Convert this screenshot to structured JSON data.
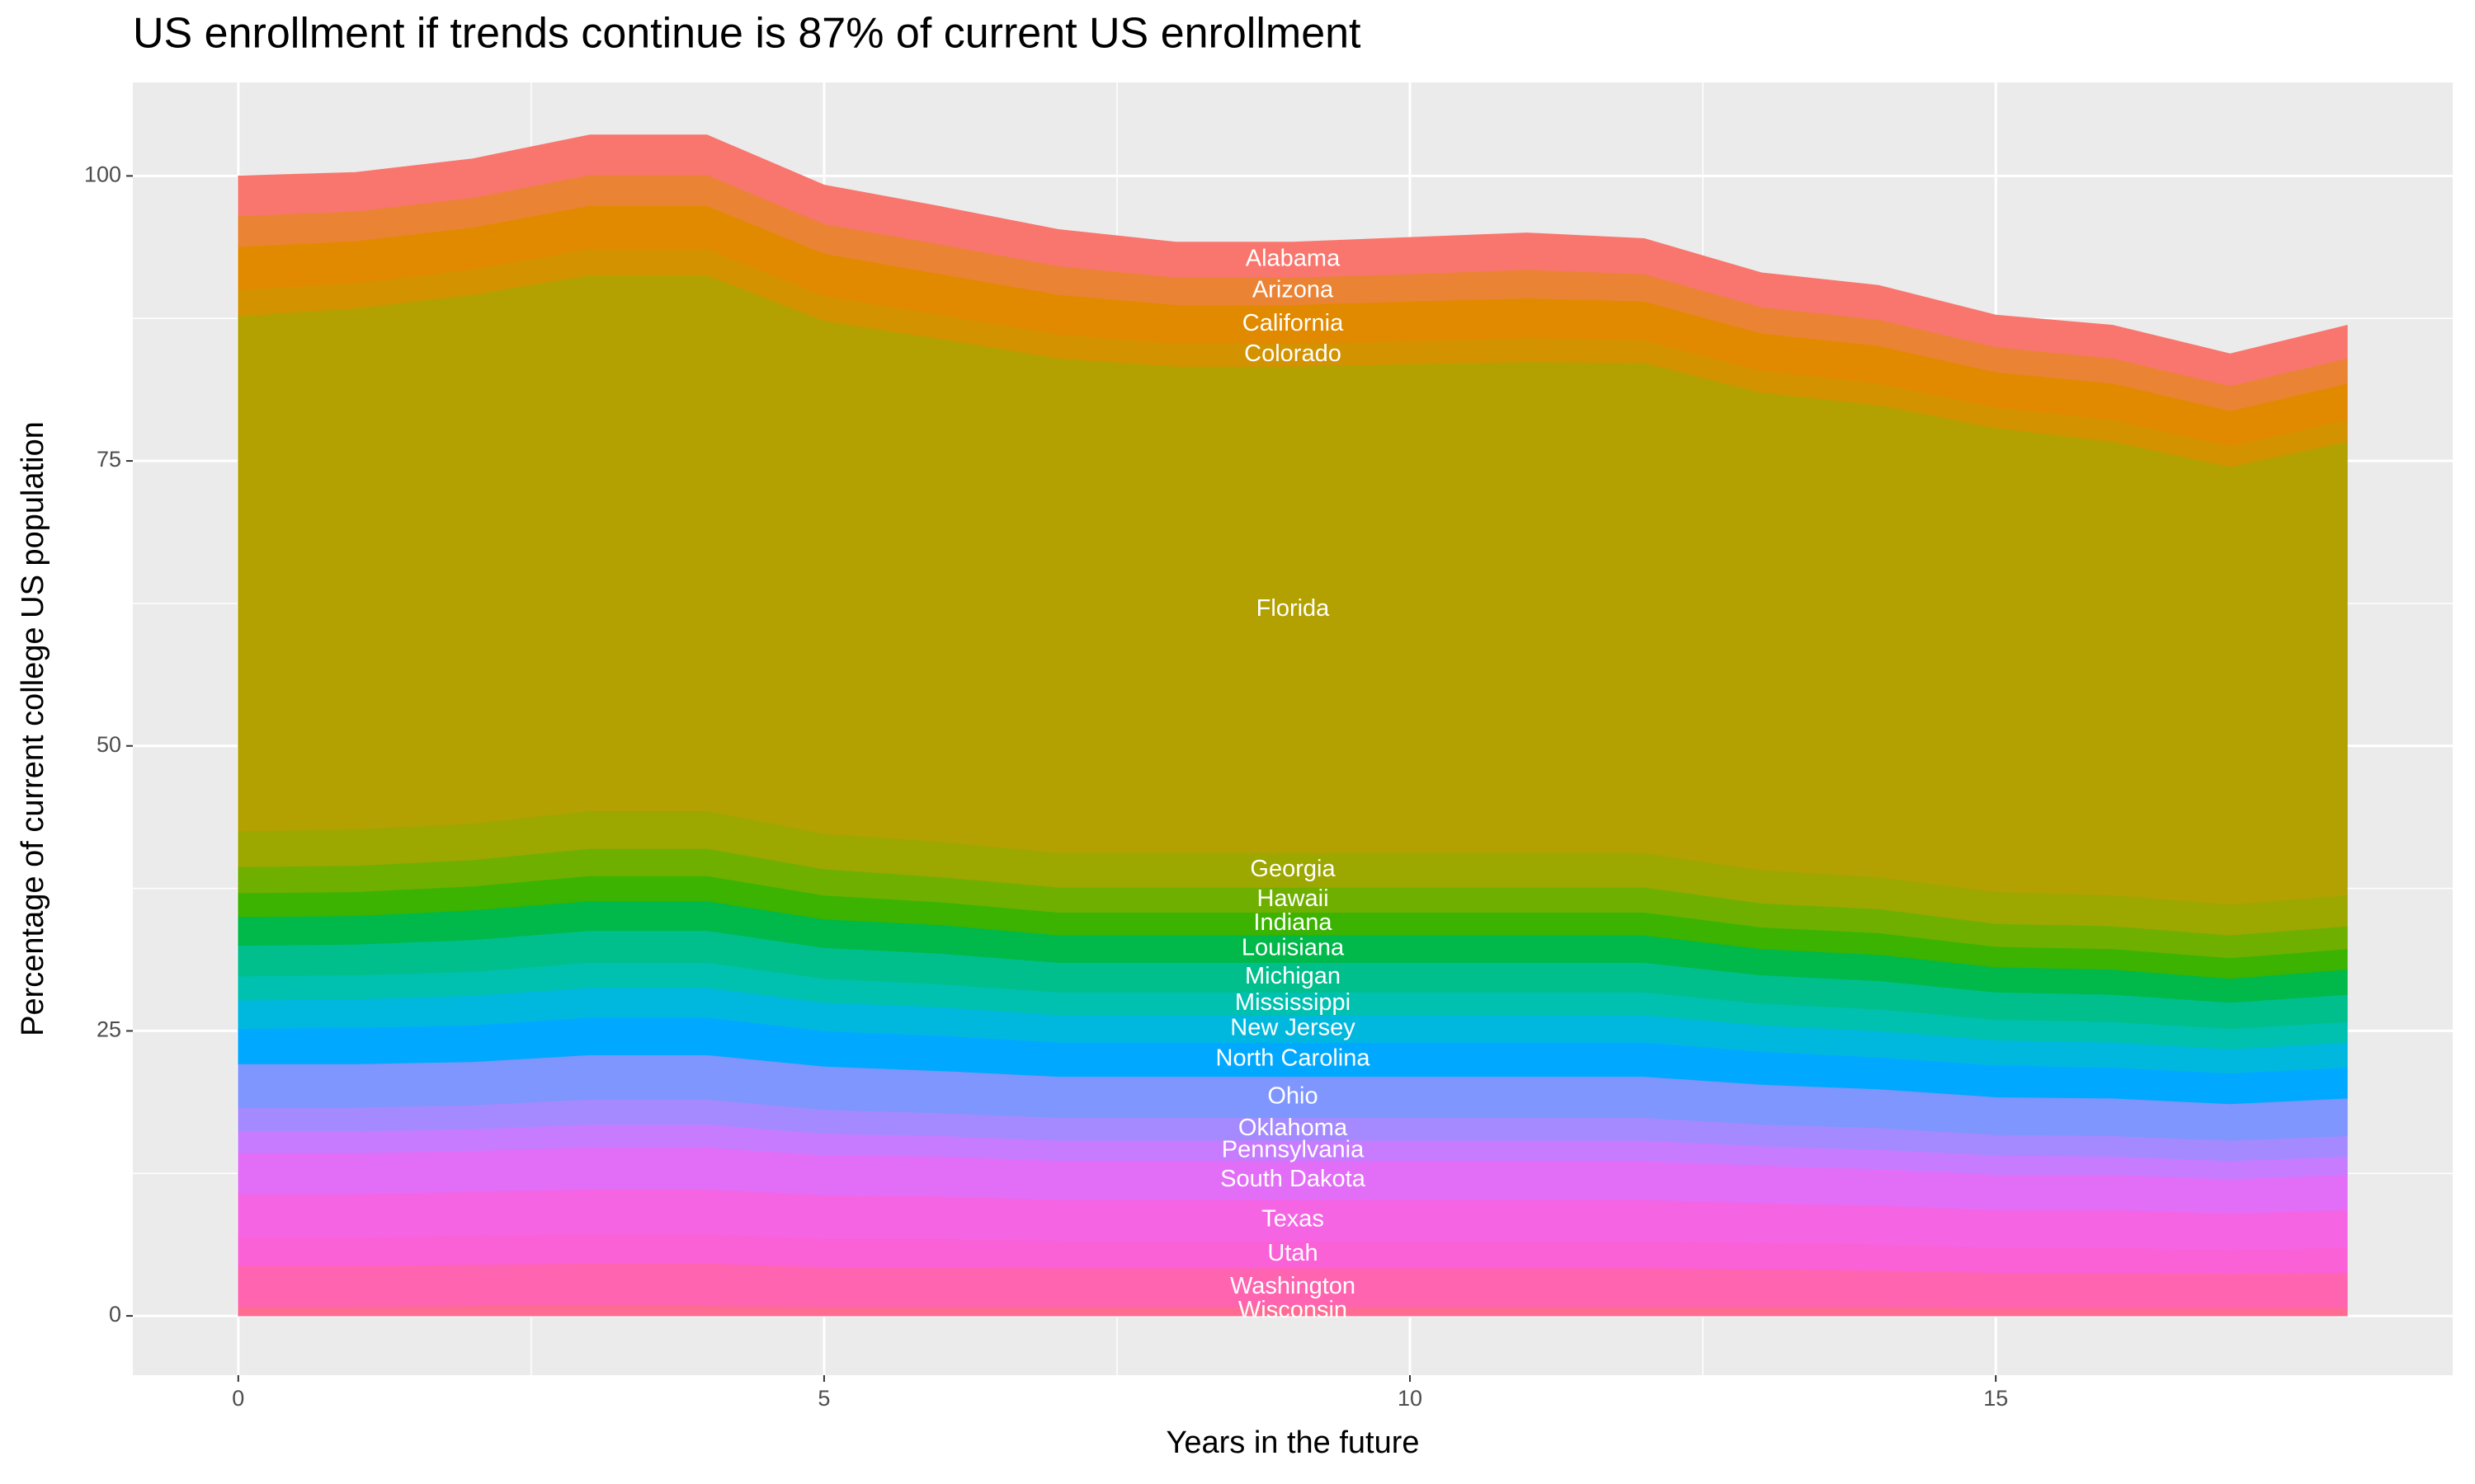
{
  "chart_data": {
    "type": "stacked-area",
    "title": "US enrollment if trends continue is 87% of current US enrollment",
    "x_label": "Years in the future",
    "y_label": "Percentage of current college US population",
    "x": [
      0,
      1,
      2,
      3,
      4,
      5,
      6,
      7,
      8,
      9,
      10,
      11,
      12,
      13,
      14,
      15,
      16,
      17,
      18
    ],
    "xlim": [
      -0.9,
      18.9
    ],
    "xticks": [
      0,
      5,
      10,
      15
    ],
    "ylim": [
      -5.2,
      108.2
    ],
    "yticks": [
      0,
      25,
      50,
      75,
      100
    ],
    "grid": true,
    "series": [
      {
        "name": "Alabama",
        "color": "#F8766D",
        "values": [
          3.5,
          3.4,
          3.4,
          3.5,
          3.5,
          3.4,
          3.3,
          3.2,
          3.1,
          3.1,
          3.2,
          3.2,
          3.1,
          3.0,
          3.0,
          2.8,
          2.9,
          2.8,
          2.9
        ]
      },
      {
        "name": "Arizona",
        "color": "#EB8335",
        "values": [
          2.7,
          2.6,
          2.6,
          2.7,
          2.7,
          2.6,
          2.6,
          2.5,
          2.4,
          2.4,
          2.4,
          2.5,
          2.4,
          2.3,
          2.3,
          2.2,
          2.2,
          2.2,
          2.2
        ]
      },
      {
        "name": "California",
        "color": "#E18A00",
        "values": [
          3.8,
          3.7,
          3.7,
          3.8,
          3.8,
          3.7,
          3.6,
          3.5,
          3.4,
          3.4,
          3.5,
          3.5,
          3.4,
          3.3,
          3.3,
          3.1,
          3.2,
          3.1,
          3.2
        ]
      },
      {
        "name": "Colorado",
        "color": "#D39200",
        "values": [
          2.3,
          2.2,
          2.2,
          2.3,
          2.3,
          2.2,
          2.1,
          2.1,
          2.0,
          2.0,
          2.0,
          2.1,
          2.0,
          1.9,
          1.9,
          1.8,
          1.9,
          1.8,
          1.9
        ]
      },
      {
        "name": "Florida",
        "color": "#B2A100",
        "values": [
          45.2,
          45.7,
          46.4,
          47.0,
          47.0,
          45.0,
          44.1,
          43.4,
          42.7,
          42.7,
          42.9,
          43.1,
          43.0,
          41.9,
          41.4,
          40.7,
          39.8,
          38.4,
          39.8
        ]
      },
      {
        "name": "Georgia",
        "color": "#9CA700",
        "values": [
          3.1,
          3.2,
          3.2,
          3.3,
          3.3,
          3.1,
          3.1,
          3.0,
          3.0,
          3.0,
          3.0,
          3.0,
          3.0,
          2.9,
          2.8,
          2.8,
          2.7,
          2.7,
          2.7
        ]
      },
      {
        "name": "Hawaii",
        "color": "#6FAF00",
        "values": [
          2.3,
          2.3,
          2.3,
          2.4,
          2.4,
          2.3,
          2.2,
          2.2,
          2.2,
          2.2,
          2.2,
          2.2,
          2.2,
          2.1,
          2.1,
          2.0,
          2.0,
          2.0,
          2.0
        ]
      },
      {
        "name": "Indiana",
        "color": "#3BB300",
        "values": [
          2.1,
          2.1,
          2.1,
          2.2,
          2.2,
          2.1,
          2.0,
          2.0,
          2.0,
          2.0,
          2.0,
          2.0,
          2.0,
          1.9,
          1.9,
          1.8,
          1.8,
          1.8,
          1.8
        ]
      },
      {
        "name": "Louisiana",
        "color": "#00B94A",
        "values": [
          2.5,
          2.5,
          2.6,
          2.6,
          2.6,
          2.5,
          2.5,
          2.4,
          2.4,
          2.4,
          2.4,
          2.4,
          2.4,
          2.3,
          2.3,
          2.2,
          2.2,
          2.1,
          2.2
        ]
      },
      {
        "name": "Michigan",
        "color": "#00BF8C",
        "values": [
          2.7,
          2.7,
          2.8,
          2.8,
          2.8,
          2.7,
          2.7,
          2.6,
          2.6,
          2.6,
          2.6,
          2.6,
          2.6,
          2.5,
          2.5,
          2.4,
          2.4,
          2.3,
          2.4
        ]
      },
      {
        "name": "Mississippi",
        "color": "#00C0B0",
        "values": [
          2.1,
          2.1,
          2.1,
          2.2,
          2.2,
          2.1,
          2.0,
          2.0,
          2.0,
          2.0,
          2.0,
          2.0,
          2.0,
          1.9,
          1.9,
          1.8,
          1.8,
          1.8,
          1.8
        ]
      },
      {
        "name": "New Jersey",
        "color": "#00B8DE",
        "values": [
          2.5,
          2.5,
          2.6,
          2.6,
          2.6,
          2.5,
          2.5,
          2.4,
          2.4,
          2.4,
          2.4,
          2.4,
          2.4,
          2.3,
          2.3,
          2.2,
          2.2,
          2.1,
          2.2
        ]
      },
      {
        "name": "North Carolina",
        "color": "#00A9FF",
        "values": [
          3.1,
          3.2,
          3.2,
          3.3,
          3.3,
          3.1,
          3.1,
          3.0,
          3.0,
          3.0,
          3.0,
          3.0,
          3.0,
          2.9,
          2.8,
          2.8,
          2.7,
          2.7,
          2.7
        ]
      },
      {
        "name": "Ohio",
        "color": "#7F96FF",
        "values": [
          3.8,
          3.8,
          3.8,
          3.9,
          3.9,
          3.8,
          3.7,
          3.6,
          3.6,
          3.6,
          3.6,
          3.6,
          3.6,
          3.5,
          3.4,
          3.3,
          3.3,
          3.2,
          3.3
        ]
      },
      {
        "name": "Oklahoma",
        "color": "#A58AFF",
        "values": [
          2.1,
          2.1,
          2.1,
          2.2,
          2.2,
          2.1,
          2.0,
          2.0,
          2.0,
          2.0,
          2.0,
          2.0,
          2.0,
          1.9,
          1.9,
          1.8,
          1.8,
          1.8,
          1.8
        ]
      },
      {
        "name": "Pennsylvania",
        "color": "#C77CFF",
        "values": [
          1.9,
          1.9,
          1.9,
          2.0,
          2.0,
          1.9,
          1.8,
          1.8,
          1.8,
          1.8,
          1.8,
          1.8,
          1.8,
          1.7,
          1.7,
          1.7,
          1.6,
          1.6,
          1.6
        ]
      },
      {
        "name": "South Dakota",
        "color": "#E26EF7",
        "values": [
          3.6,
          3.6,
          3.6,
          3.7,
          3.7,
          3.5,
          3.5,
          3.4,
          3.4,
          3.4,
          3.4,
          3.4,
          3.4,
          3.3,
          3.2,
          3.1,
          3.1,
          3.0,
          3.1
        ]
      },
      {
        "name": "Texas",
        "color": "#F564E3",
        "values": [
          3.8,
          3.8,
          3.8,
          3.9,
          3.9,
          3.8,
          3.7,
          3.6,
          3.6,
          3.6,
          3.6,
          3.6,
          3.6,
          3.5,
          3.4,
          3.3,
          3.3,
          3.2,
          3.3
        ]
      },
      {
        "name": "Utah",
        "color": "#FB61D7",
        "values": [
          2.5,
          2.5,
          2.6,
          2.6,
          2.6,
          2.5,
          2.5,
          2.4,
          2.4,
          2.4,
          2.4,
          2.4,
          2.4,
          2.3,
          2.3,
          2.2,
          2.2,
          2.1,
          2.2
        ]
      },
      {
        "name": "Washington",
        "color": "#FF64B0",
        "values": [
          3.6,
          3.6,
          3.6,
          3.7,
          3.7,
          3.5,
          3.5,
          3.4,
          3.4,
          3.4,
          3.4,
          3.4,
          3.4,
          3.3,
          3.2,
          3.1,
          3.1,
          3.0,
          3.1
        ]
      },
      {
        "name": "Wisconsin",
        "color": "#FF6C91",
        "values": [
          0.8,
          0.8,
          0.9,
          0.9,
          0.9,
          0.8,
          0.8,
          0.8,
          0.8,
          0.8,
          0.8,
          0.8,
          0.8,
          0.8,
          0.8,
          0.7,
          0.7,
          0.7,
          0.7
        ]
      }
    ]
  }
}
